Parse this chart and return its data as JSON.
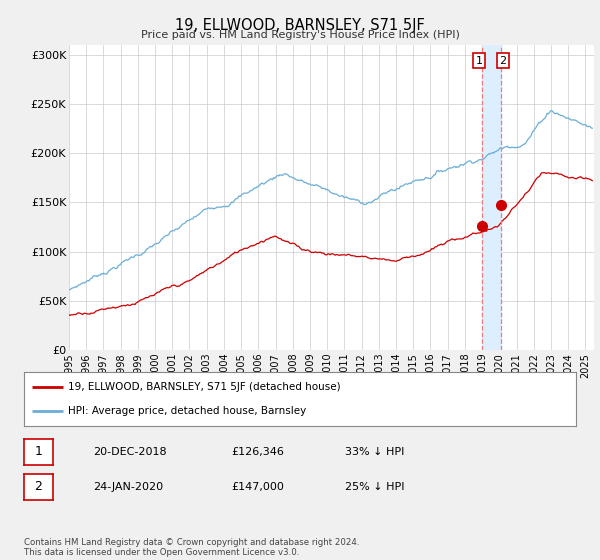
{
  "title": "19, ELLWOOD, BARNSLEY, S71 5JF",
  "subtitle": "Price paid vs. HM Land Registry's House Price Index (HPI)",
  "background_color": "#f0f0f0",
  "plot_bg_color": "#ffffff",
  "ylim": [
    0,
    310000
  ],
  "yticks": [
    0,
    50000,
    100000,
    150000,
    200000,
    250000,
    300000
  ],
  "ytick_labels": [
    "£0",
    "£50K",
    "£100K",
    "£150K",
    "£200K",
    "£250K",
    "£300K"
  ],
  "hpi_color": "#6baed6",
  "price_color": "#cc0000",
  "dashed_color": "#e88080",
  "shade_color": "#ddeeff",
  "sale1": {
    "date_num": 2018.97,
    "price": 126346
  },
  "sale2": {
    "date_num": 2020.07,
    "price": 147000
  },
  "legend_entries": [
    "19, ELLWOOD, BARNSLEY, S71 5JF (detached house)",
    "HPI: Average price, detached house, Barnsley"
  ],
  "table_rows": [
    [
      "1",
      "20-DEC-2018",
      "£126,346",
      "33% ↓ HPI"
    ],
    [
      "2",
      "24-JAN-2020",
      "£147,000",
      "25% ↓ HPI"
    ]
  ],
  "footer": "Contains HM Land Registry data © Crown copyright and database right 2024.\nThis data is licensed under the Open Government Licence v3.0.",
  "xmin": 1995.0,
  "xmax": 2025.5,
  "xtick_years": [
    1995,
    1996,
    1997,
    1998,
    1999,
    2000,
    2001,
    2002,
    2003,
    2004,
    2005,
    2006,
    2007,
    2008,
    2009,
    2010,
    2011,
    2012,
    2013,
    2014,
    2015,
    2016,
    2017,
    2018,
    2019,
    2020,
    2021,
    2022,
    2023,
    2024,
    2025
  ]
}
